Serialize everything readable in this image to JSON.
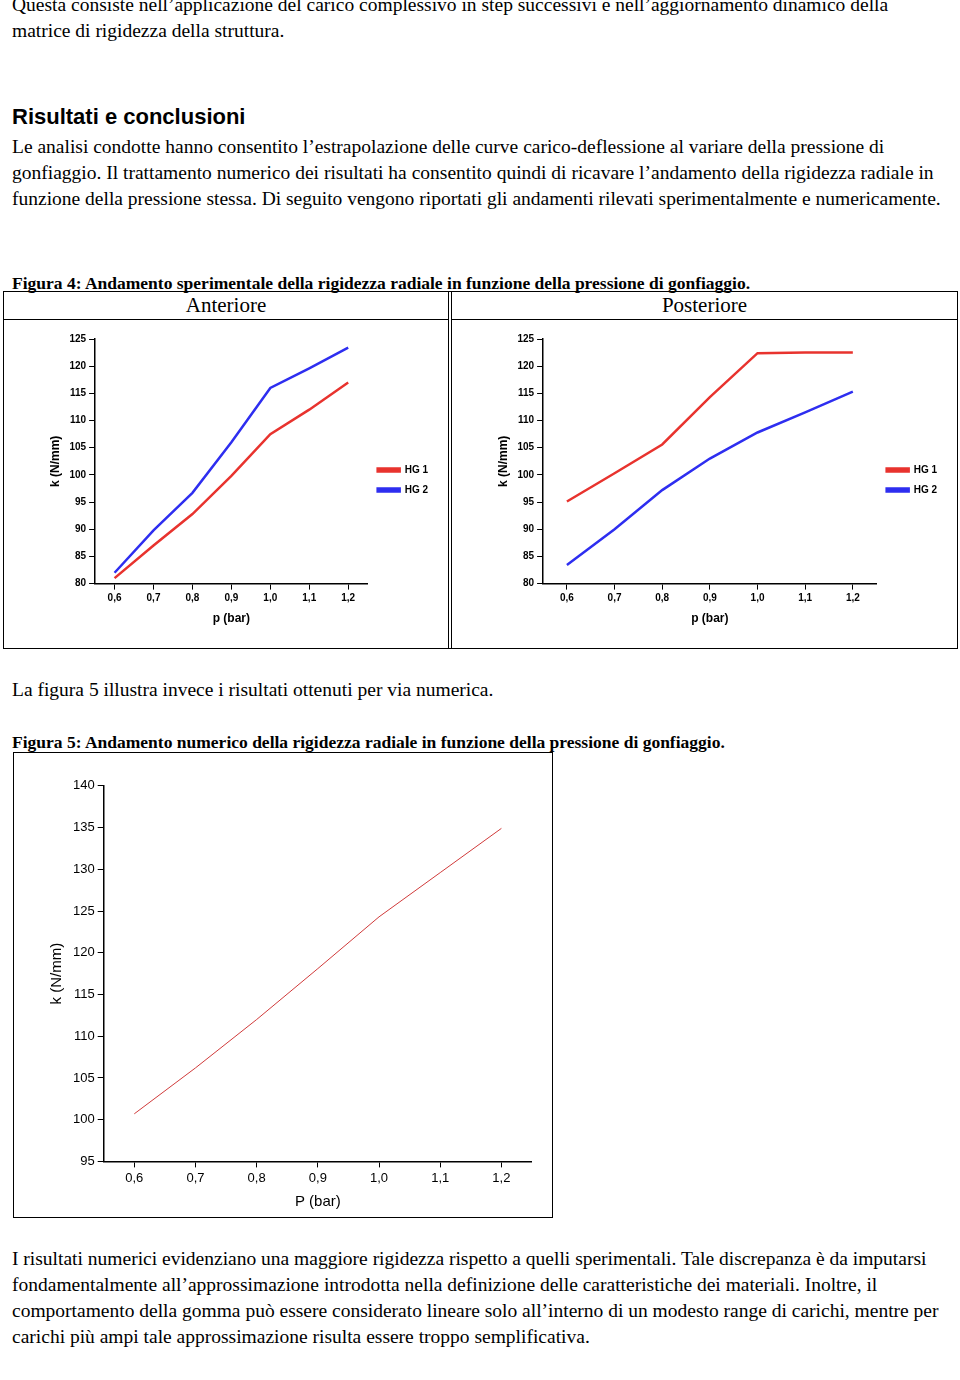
{
  "document": {
    "top_text": "Questa consiste nell’applicazione del carico complessivo in step successivi e nell’aggiornamento dinamico della matrice di rigidezza della struttura.",
    "section_title": "Risultati e conclusioni",
    "paragraph_1": "Le analisi condotte hanno consentito l’estrapolazione delle curve carico-deflessione al variare della pressione di gonfiaggio. Il trattamento numerico dei risultati ha consentito quindi di ricavare l’andamento della rigidezza radiale in funzione della pressione stessa. Di seguito vengono riportati gli andamenti rilevati sperimentalmente e numericamente.",
    "figure_4_caption": "Figura 4: Andamento sperimentale della rigidezza radiale in funzione della pressione di gonfiaggio.",
    "paragraph_2": "La figura 5 illustra invece i risultati ottenuti per via numerica.",
    "figure_5_caption": "Figura 5: Andamento numerico della rigidezza radiale in funzione della pressione di gonfiaggio.",
    "paragraph_3": "I risultati numerici evidenziano una maggiore rigidezza rispetto a quelli sperimentali. Tale discrepanza è da imputarsi fondamentalmente all’approssimazione introdotta nella definizione delle caratteristiche dei materiali. Inoltre, il comportamento della gomma può essere considerato lineare solo all’interno di un modesto range di carichi, mentre per carichi più ampi tale approssimazione risulta essere troppo semplificativa."
  },
  "chart_data": [
    {
      "type": "line",
      "title": "Anteriore",
      "x_label": "p (bar)",
      "y_label": "k (N/mm)",
      "x": [
        0.6,
        0.7,
        0.8,
        0.9,
        1.0,
        1.1,
        1.2
      ],
      "series": [
        {
          "name": "HG 1",
          "color": "#e8332e",
          "values": [
            81,
            87,
            92.8,
            99.8,
            107.5,
            112,
            117
          ]
        },
        {
          "name": "HG 2",
          "color": "#2e2ef0",
          "values": [
            82,
            89.8,
            96.7,
            106,
            116,
            119.6,
            123.4
          ]
        }
      ],
      "xlim": [
        0.55,
        1.25
      ],
      "xticks": [
        {
          "value": 0.6,
          "label": "0,6"
        },
        {
          "value": 0.7,
          "label": "0,7"
        },
        {
          "value": 0.8,
          "label": "0,8"
        },
        {
          "value": 0.9,
          "label": "0,9"
        },
        {
          "value": 1.0,
          "label": "1,0"
        },
        {
          "value": 1.1,
          "label": "1,1"
        },
        {
          "value": 1.2,
          "label": "1,2"
        }
      ],
      "ylim": [
        80,
        125
      ],
      "yticks": [
        80,
        85,
        90,
        95,
        100,
        105,
        110,
        115,
        120,
        125
      ],
      "grid": false,
      "legend": "right"
    },
    {
      "type": "line",
      "title": "Posteriore",
      "x_label": "p (bar)",
      "y_label": "k (N/mm)",
      "x": [
        0.6,
        0.7,
        0.8,
        0.9,
        1.0,
        1.1,
        1.2
      ],
      "series": [
        {
          "name": "HG 1",
          "color": "#e8332e",
          "values": [
            95.1,
            100.3,
            105.6,
            114.3,
            122.4,
            122.5,
            122.5
          ]
        },
        {
          "name": "HG 2",
          "color": "#2e2ef0",
          "values": [
            83.4,
            90,
            97.2,
            103,
            107.8,
            111.5,
            115.3
          ]
        }
      ],
      "xlim": [
        0.55,
        1.25
      ],
      "xticks": [
        {
          "value": 0.6,
          "label": "0,6"
        },
        {
          "value": 0.7,
          "label": "0,7"
        },
        {
          "value": 0.8,
          "label": "0,8"
        },
        {
          "value": 0.9,
          "label": "0,9"
        },
        {
          "value": 1.0,
          "label": "1,0"
        },
        {
          "value": 1.1,
          "label": "1,1"
        },
        {
          "value": 1.2,
          "label": "1,2"
        }
      ],
      "ylim": [
        80,
        125
      ],
      "yticks": [
        80,
        85,
        90,
        95,
        100,
        105,
        110,
        115,
        120,
        125
      ],
      "grid": false,
      "legend": "right"
    },
    {
      "type": "line",
      "x_label": "P (bar)",
      "y_label": "k (N/mm)",
      "x": [
        0.6,
        0.7,
        0.8,
        0.9,
        1.0,
        1.1,
        1.2
      ],
      "series": [
        {
          "color": "#d03a3a",
          "values": [
            100.7,
            106.2,
            112,
            118.1,
            124.3,
            129.6,
            134.9
          ]
        }
      ],
      "xlim": [
        0.55,
        1.25
      ],
      "xticks": [
        {
          "value": 0.6,
          "label": "0,6"
        },
        {
          "value": 0.7,
          "label": "0,7"
        },
        {
          "value": 0.8,
          "label": "0,8"
        },
        {
          "value": 0.9,
          "label": "0,9"
        },
        {
          "value": 1.0,
          "label": "1,0"
        },
        {
          "value": 1.1,
          "label": "1,1"
        },
        {
          "value": 1.2,
          "label": "1,2"
        }
      ],
      "ylim": [
        95,
        140
      ],
      "yticks": [
        95,
        100,
        105,
        110,
        115,
        120,
        125,
        130,
        135,
        140
      ],
      "grid": false
    }
  ]
}
